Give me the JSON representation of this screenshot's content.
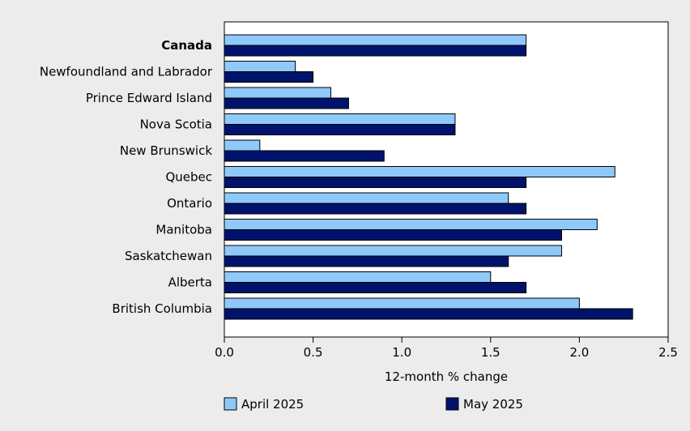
{
  "chart_data": {
    "type": "bar",
    "orientation": "horizontal",
    "categories": [
      "Canada",
      "Newfoundland and Labrador",
      "Prince Edward Island",
      "Nova Scotia",
      "New Brunswick",
      "Quebec",
      "Ontario",
      "Manitoba",
      "Saskatchewan",
      "Alberta",
      "British Columbia"
    ],
    "emphasized_category": "Canada",
    "series": [
      {
        "name": "April 2025",
        "color": "#8fc9f9",
        "values": [
          1.7,
          0.4,
          0.6,
          1.3,
          0.2,
          2.2,
          1.6,
          2.1,
          1.9,
          1.5,
          2.0
        ]
      },
      {
        "name": "May 2025",
        "color": "#00136c",
        "values": [
          1.7,
          0.5,
          0.7,
          1.3,
          0.9,
          1.7,
          1.7,
          1.9,
          1.6,
          1.7,
          2.3
        ]
      }
    ],
    "xlabel": "12-month % change",
    "xlim": [
      0,
      2.5
    ],
    "xticks": [
      "0.0",
      "0.5",
      "1.0",
      "1.5",
      "2.0",
      "2.5"
    ],
    "grid": false,
    "legend_position": "bottom"
  }
}
